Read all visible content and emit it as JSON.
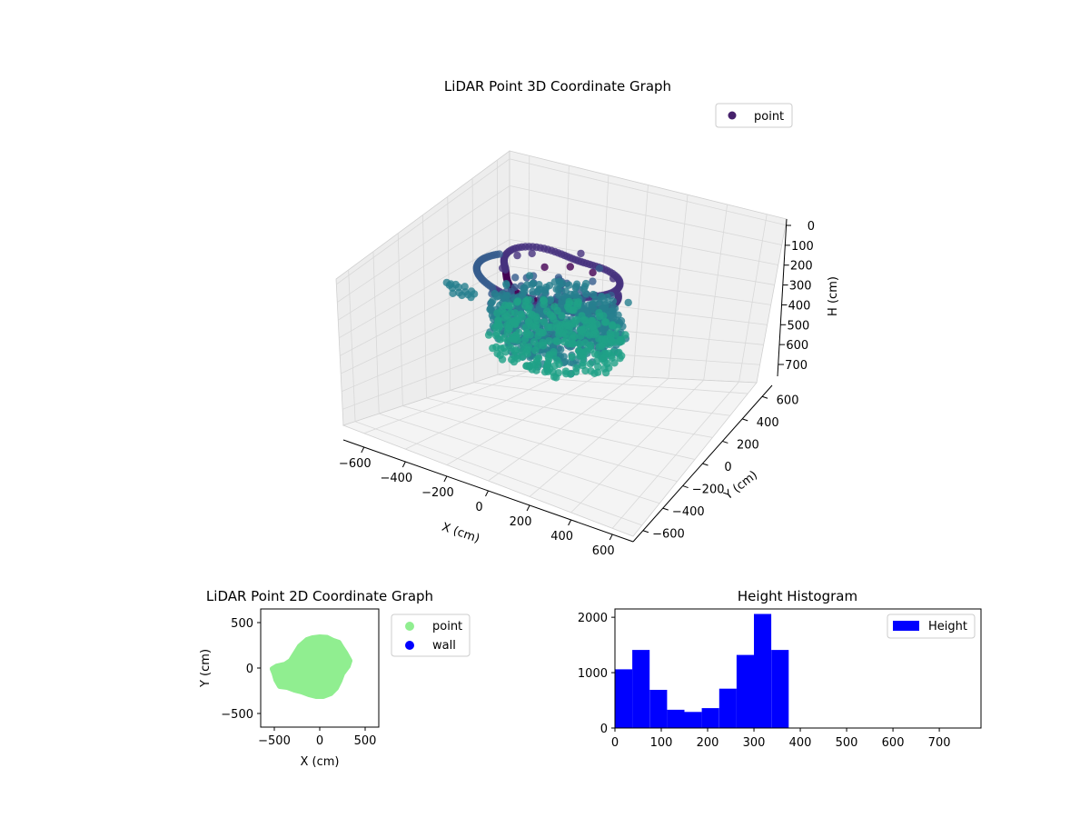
{
  "chart_data": [
    {
      "type": "scatter",
      "projection": "3d",
      "title": "LiDAR Point 3D Coordinate Graph",
      "xlabel": "X (cm)",
      "ylabel": "Y (cm)",
      "zlabel": "H (cm)",
      "xlim": [
        -700,
        700
      ],
      "ylim": [
        -700,
        700
      ],
      "zlim": [
        750,
        0
      ],
      "x_ticks": [
        "−600",
        "−400",
        "−200",
        "0",
        "200",
        "400",
        "600"
      ],
      "y_ticks": [
        "−600",
        "−400",
        "−200",
        "0",
        "200",
        "400",
        "600"
      ],
      "z_ticks": [
        "0",
        "100",
        "200",
        "300",
        "400",
        "500",
        "600",
        "700"
      ],
      "z_inverted": true,
      "grid": true,
      "colormap": "viridis (by height)",
      "legend": {
        "position": "top-right",
        "entries": [
          {
            "label": "point",
            "color": "#46216b"
          }
        ]
      },
      "series": [
        {
          "name": "point",
          "shape": "blob of points roughly inside X -300..300 cm, Y -300..300 cm, heights ~0..700 cm; a ring/arc of points near H 100-200 cm (purple), dense cluster at H 250-400 cm (teal/green)",
          "points": [
            {
              "x": -40,
              "y": -30,
              "h": 30
            },
            {
              "x": 60,
              "y": 20,
              "h": 20
            },
            {
              "x": 150,
              "y": 60,
              "h": 40
            },
            {
              "x": -150,
              "y": 70,
              "h": 60
            },
            {
              "x": 220,
              "y": 120,
              "h": 80
            },
            {
              "x": -230,
              "y": -60,
              "h": 90
            },
            {
              "x": 0,
              "y": 250,
              "h": 110
            },
            {
              "x": 120,
              "y": -200,
              "h": 130
            },
            {
              "x": -120,
              "y": -180,
              "h": 140
            },
            {
              "x": 250,
              "y": -50,
              "h": 150
            },
            {
              "x": -260,
              "y": 150,
              "h": 160
            },
            {
              "x": 80,
              "y": 270,
              "h": 170
            },
            {
              "x": -60,
              "y": 150,
              "h": 200
            },
            {
              "x": 180,
              "y": 180,
              "h": 220
            },
            {
              "x": -200,
              "y": -200,
              "h": 240
            },
            {
              "x": 20,
              "y": -80,
              "h": 260
            },
            {
              "x": 230,
              "y": 250,
              "h": 280
            },
            {
              "x": -100,
              "y": 40,
              "h": 300
            },
            {
              "x": 140,
              "y": -120,
              "h": 310
            },
            {
              "x": -300,
              "y": 30,
              "h": 320
            },
            {
              "x": 60,
              "y": 120,
              "h": 330
            },
            {
              "x": 300,
              "y": 80,
              "h": 340
            },
            {
              "x": -180,
              "y": 220,
              "h": 350
            },
            {
              "x": 200,
              "y": -260,
              "h": 360
            },
            {
              "x": -40,
              "y": -250,
              "h": 370
            },
            {
              "x": -500,
              "y": -20,
              "h": 300
            },
            {
              "x": 100,
              "y": 40,
              "h": 380
            },
            {
              "x": -150,
              "y": -100,
              "h": 390
            },
            {
              "x": 250,
              "y": 180,
              "h": 400
            },
            {
              "x": 0,
              "y": 0,
              "h": 420
            }
          ]
        }
      ]
    },
    {
      "type": "scatter",
      "title": "LiDAR Point 2D Coordinate Graph",
      "xlabel": "X (cm)",
      "ylabel": "Y (cm)",
      "xlim": [
        -650,
        650
      ],
      "ylim": [
        -650,
        650
      ],
      "x_ticks": [
        "−500",
        "0",
        "500"
      ],
      "y_ticks": [
        "−500",
        "0",
        "500"
      ],
      "legend": {
        "position": "outside-right",
        "entries": [
          {
            "label": "point",
            "color": "#90ee90"
          },
          {
            "label": "wall",
            "color": "#0000ff"
          }
        ]
      },
      "series": [
        {
          "name": "point",
          "color": "#90ee90",
          "outline_xy": [
            [
              -140,
              310
            ],
            [
              -80,
              330
            ],
            [
              0,
              340
            ],
            [
              80,
              335
            ],
            [
              150,
              300
            ],
            [
              210,
              280
            ],
            [
              240,
              230
            ],
            [
              280,
              170
            ],
            [
              330,
              80
            ],
            [
              310,
              20
            ],
            [
              250,
              -60
            ],
            [
              220,
              -140
            ],
            [
              180,
              -220
            ],
            [
              120,
              -280
            ],
            [
              40,
              -310
            ],
            [
              -40,
              -310
            ],
            [
              -120,
              -290
            ],
            [
              -200,
              -260
            ],
            [
              -280,
              -240
            ],
            [
              -360,
              -210
            ],
            [
              -440,
              -200
            ],
            [
              -480,
              -130
            ],
            [
              -500,
              -60
            ],
            [
              -520,
              -10
            ],
            [
              -470,
              20
            ],
            [
              -380,
              40
            ],
            [
              -320,
              80
            ],
            [
              -270,
              160
            ],
            [
              -220,
              240
            ]
          ]
        },
        {
          "name": "wall",
          "color": "#0000ff",
          "points": []
        }
      ]
    },
    {
      "type": "bar",
      "subtype": "histogram",
      "title": "Height Histogram",
      "xlabel": "",
      "ylabel": "",
      "xlim": [
        0,
        790
      ],
      "ylim": [
        0,
        2150
      ],
      "x_ticks": [
        "0",
        "100",
        "200",
        "300",
        "400",
        "500",
        "600",
        "700"
      ],
      "y_ticks": [
        "0",
        "1000",
        "2000"
      ],
      "bin_width": 37.5,
      "bin_edges": [
        0,
        37.5,
        75,
        112.5,
        150,
        187.5,
        225,
        262.5,
        300,
        337.5,
        375
      ],
      "legend": {
        "position": "top-right",
        "entries": [
          {
            "label": "Height",
            "color": "#0000ff"
          }
        ]
      },
      "series": [
        {
          "name": "Height",
          "color": "#0000ff",
          "values": [
            1060,
            1410,
            690,
            330,
            290,
            360,
            710,
            1320,
            2060,
            1410
          ]
        }
      ]
    }
  ]
}
